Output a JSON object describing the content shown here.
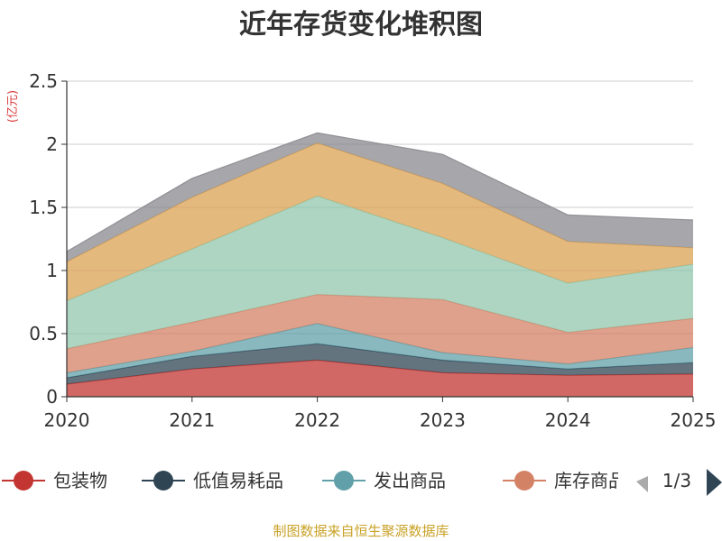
{
  "title": "近年存货变化堆积图",
  "source": "制图数据来自恒生聚源数据库",
  "legend_pager": "1/3",
  "chart_data": {
    "type": "area",
    "stacked": true,
    "title": "近年存货变化堆积图",
    "ylabel": "(亿元)",
    "categories": [
      "2020",
      "2021",
      "2022",
      "2023",
      "2024",
      "2025"
    ],
    "ylim": [
      0,
      2.5
    ],
    "yticks": [
      "0",
      "0.5",
      "1",
      "1.5",
      "2",
      "2.5"
    ],
    "grid": true,
    "legend_position": "bottom",
    "series": [
      {
        "name": "包装物",
        "color": "#c23531",
        "values": [
          0.1,
          0.22,
          0.29,
          0.19,
          0.17,
          0.18
        ]
      },
      {
        "name": "低值易耗品",
        "color": "#2f4554",
        "values": [
          0.05,
          0.1,
          0.13,
          0.1,
          0.05,
          0.09
        ]
      },
      {
        "name": "发出商品",
        "color": "#61a0a8",
        "values": [
          0.04,
          0.04,
          0.16,
          0.06,
          0.04,
          0.12
        ]
      },
      {
        "name": "库存商品",
        "color": "#d48265",
        "values": [
          0.19,
          0.23,
          0.23,
          0.42,
          0.25,
          0.23
        ]
      },
      {
        "name": "",
        "color": "#91c7ae",
        "values": [
          0.38,
          0.58,
          0.78,
          0.49,
          0.39,
          0.43
        ]
      },
      {
        "name": "",
        "color": "#dba253",
        "values": [
          0.31,
          0.41,
          0.42,
          0.43,
          0.33,
          0.13
        ]
      },
      {
        "name": "",
        "color": "#8a8a8f",
        "values": [
          0.08,
          0.15,
          0.08,
          0.23,
          0.21,
          0.22
        ]
      }
    ]
  }
}
